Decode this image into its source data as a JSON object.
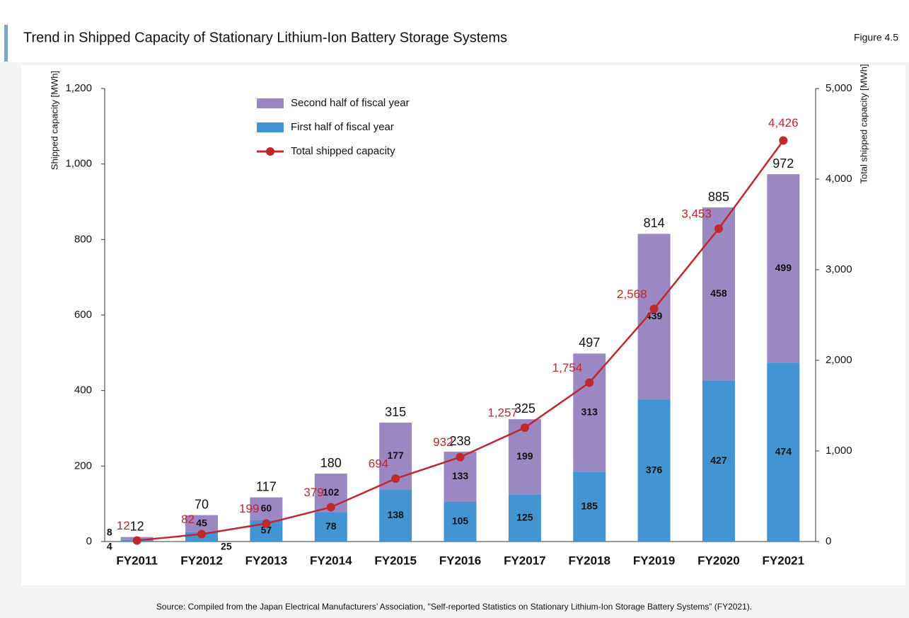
{
  "chart_data": {
    "type": "bar",
    "stacked": true,
    "title": "Trend in Shipped Capacity of Stationary Lithium-Ion Battery Storage Systems",
    "figure_label": "Figure 4.5",
    "source": "Source: Compiled from the Japan Electrical Manufacturers’ Association, \"Self-reported Statistics on Stationary Lithium-Ion Storage Battery Systems” (FY2021).",
    "ylabel": "Shipped capacity [MWh]",
    "y2label": "Total shipped capacity [MWh]",
    "categories": [
      "FY2011",
      "FY2012",
      "FY2013",
      "FY2014",
      "FY2015",
      "FY2016",
      "FY2017",
      "FY2018",
      "FY2019",
      "FY2020",
      "FY2021"
    ],
    "series": [
      {
        "name": "Second half of fiscal year",
        "color": "#9b87c1",
        "values": [
          8,
          45,
          60,
          102,
          177,
          133,
          199,
          313,
          439,
          458,
          499
        ]
      },
      {
        "name": "First half of fiscal year",
        "color": "#4294d3",
        "values": [
          4,
          25,
          57,
          78,
          138,
          105,
          125,
          185,
          376,
          427,
          474
        ]
      },
      {
        "name": "Total shipped capacity",
        "type": "line",
        "axis": "y2",
        "color": "#c1272d",
        "values": [
          12,
          82,
          199,
          379,
          694,
          932,
          1257,
          1754,
          2568,
          3453,
          4426
        ],
        "value_labels": [
          "12",
          "82",
          "199",
          "379",
          "694",
          "932",
          "1,257",
          "1,754",
          "2,568",
          "3,453",
          "4,426"
        ]
      }
    ],
    "totals": [
      12,
      70,
      117,
      180,
      315,
      238,
      325,
      497,
      814,
      885,
      972
    ],
    "ylim": [
      0,
      1200
    ],
    "yticks": [
      0,
      200,
      400,
      600,
      800,
      {
        "value": 1000,
        "label": "1,000"
      },
      {
        "value": 1200,
        "label": "1,200"
      }
    ],
    "y2lim": [
      0,
      5000
    ],
    "y2ticks": [
      0,
      {
        "value": 1000,
        "label": "1,000"
      },
      {
        "value": 2000,
        "label": "2,000"
      },
      {
        "value": 3000,
        "label": "3,000"
      },
      {
        "value": 4000,
        "label": "4,000"
      },
      {
        "value": 5000,
        "label": "5,000"
      }
    ]
  }
}
